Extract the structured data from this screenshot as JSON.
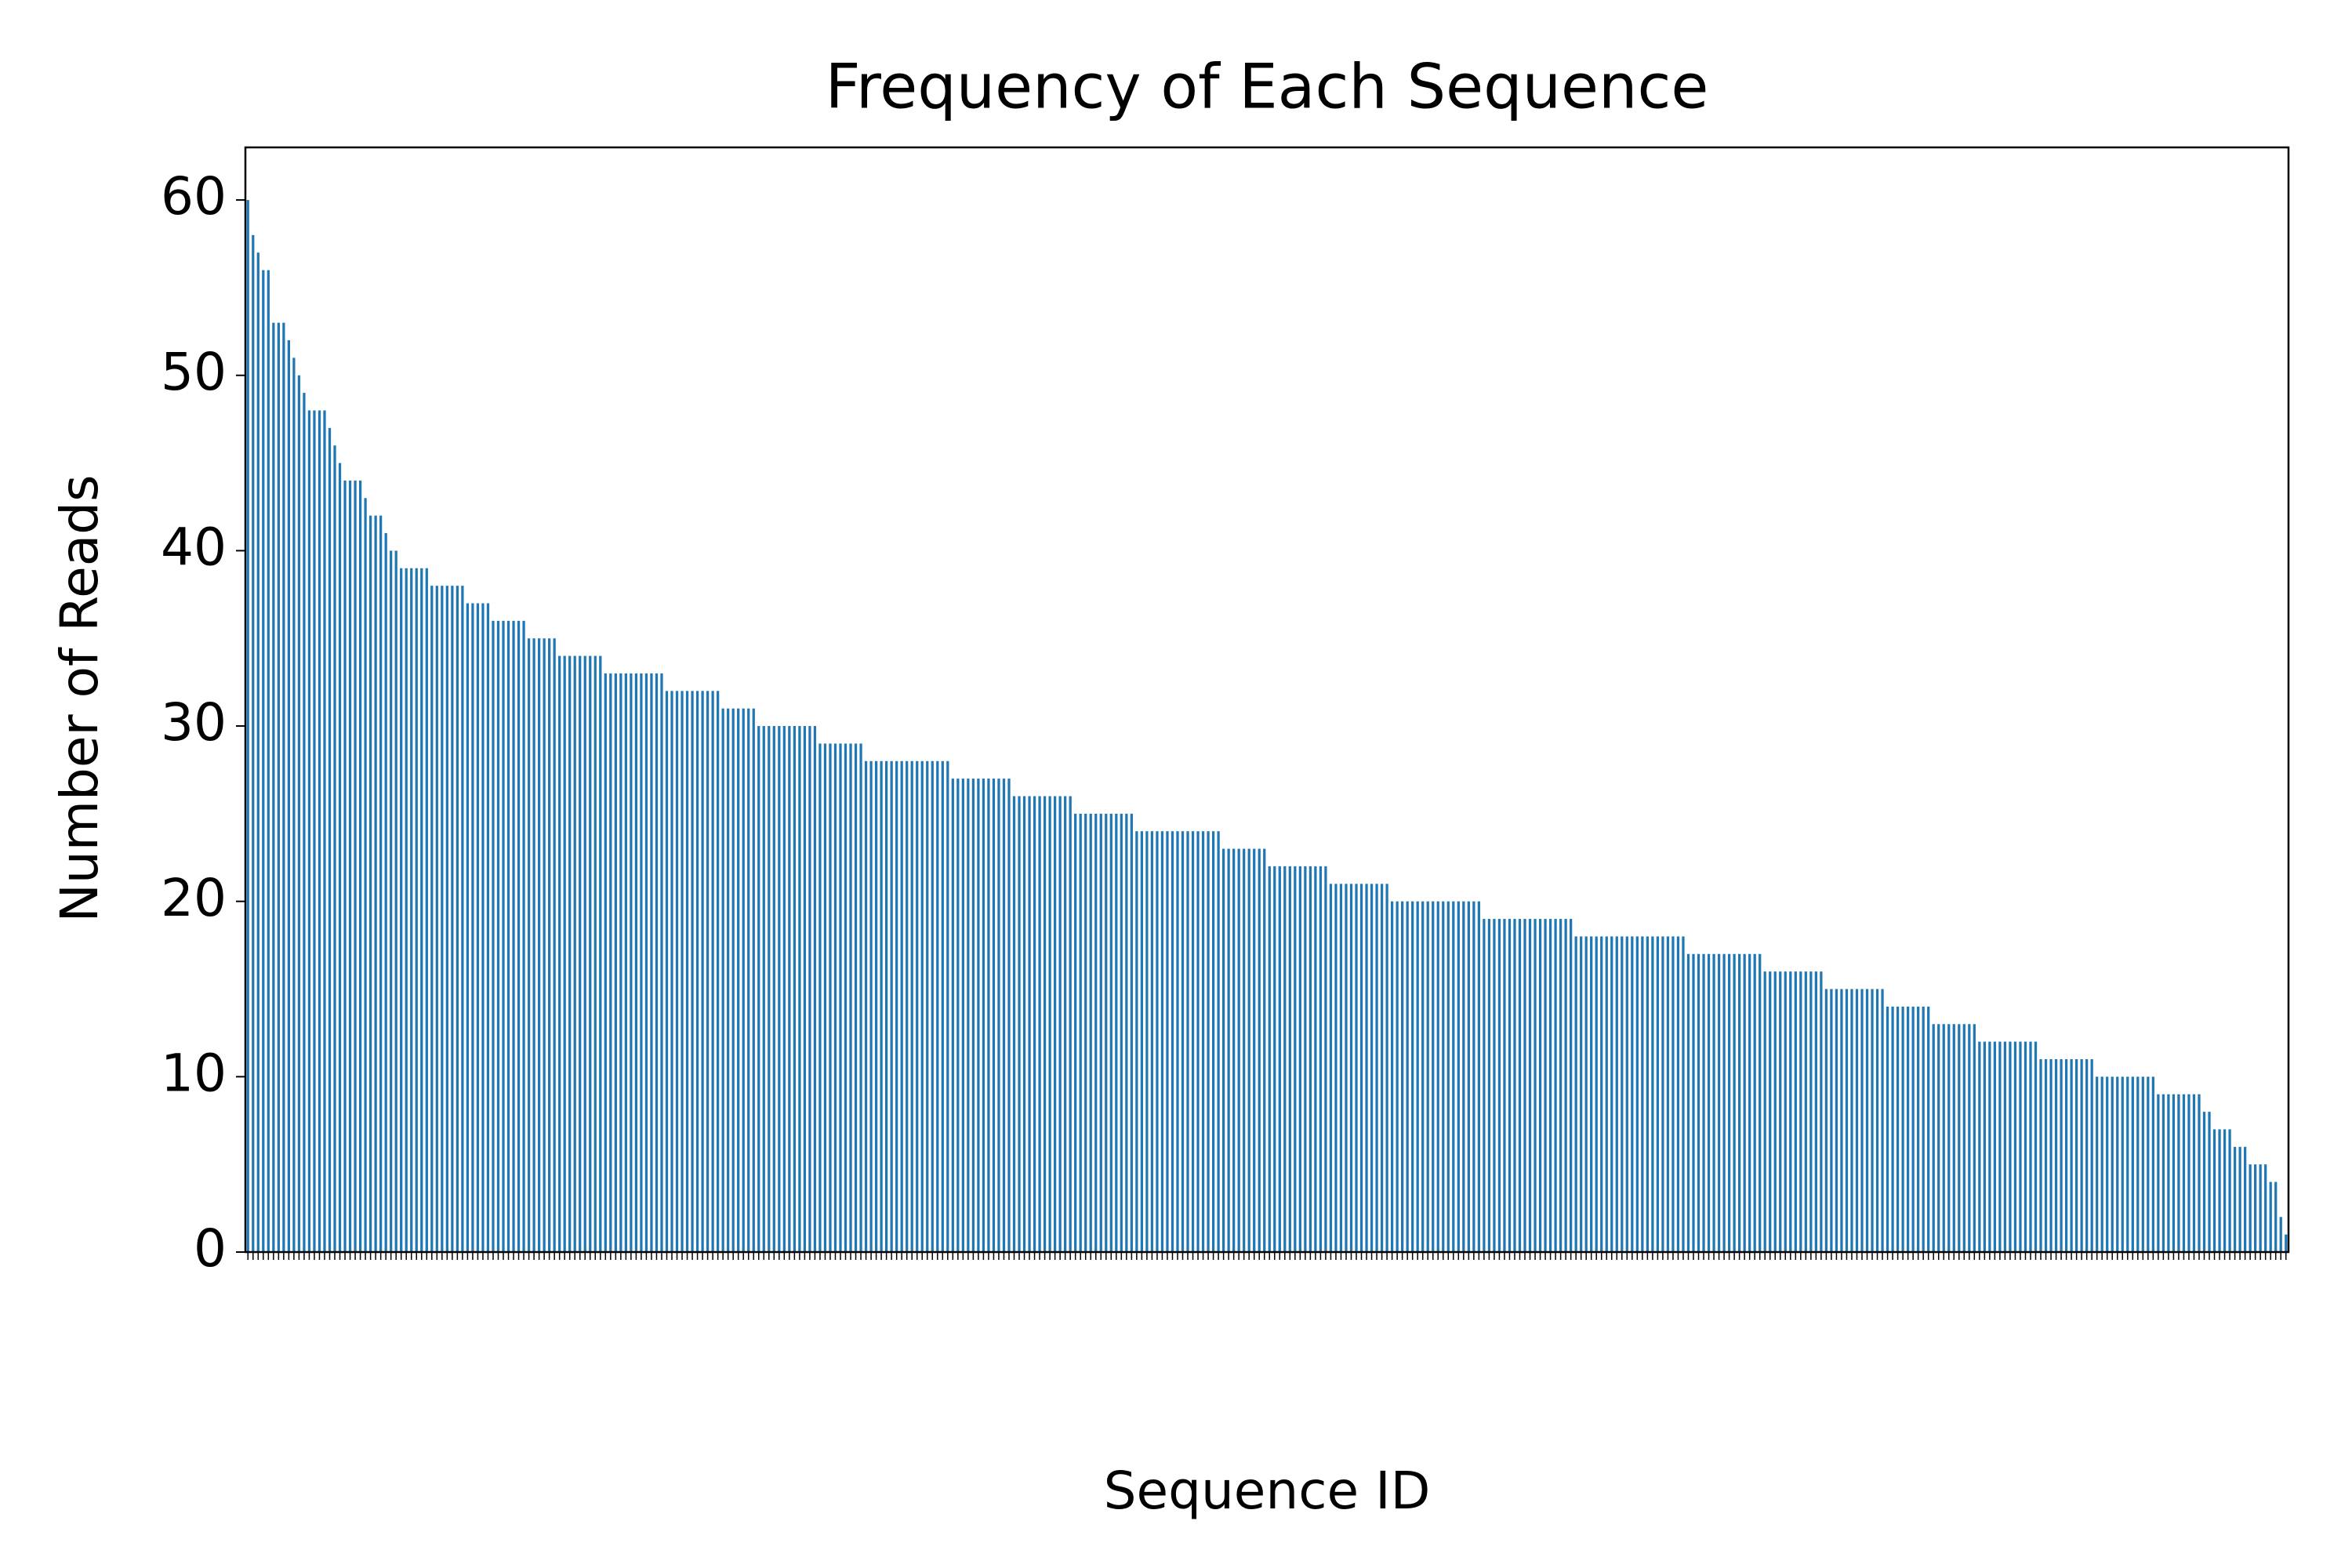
{
  "chart_data": {
    "type": "bar",
    "title": "Frequency of Each Sequence",
    "x_label": "Sequence ID",
    "y_label": "Number of Reads",
    "color": "#1f77b4",
    "ylim": [
      0,
      63
    ],
    "yticks": [
      0,
      10,
      20,
      30,
      40,
      50,
      60
    ],
    "categories": [
      null,
      null,
      null,
      null,
      null,
      null,
      null,
      null,
      null,
      null,
      null,
      null,
      null,
      null,
      null,
      null,
      null,
      null,
      null,
      null,
      null,
      null,
      null,
      null,
      null,
      null,
      null,
      null,
      null,
      null,
      null,
      null,
      null,
      null,
      null,
      null,
      null,
      null,
      null,
      null,
      null,
      null,
      null,
      null,
      null,
      null,
      null,
      null,
      null,
      null,
      null,
      null,
      null,
      null,
      null,
      null,
      null,
      null,
      null,
      null,
      null,
      null,
      null,
      null,
      null,
      null,
      null,
      null,
      null,
      null,
      null,
      null,
      null,
      null,
      null,
      null,
      null,
      null,
      null,
      null,
      null,
      null,
      null,
      null,
      null,
      null,
      null,
      null,
      null,
      null,
      null,
      null,
      null,
      null,
      null,
      null,
      null,
      null,
      null,
      null,
      null,
      null,
      null,
      null,
      null,
      null,
      null,
      null,
      null,
      null,
      null,
      null,
      null,
      null,
      null,
      null,
      null,
      null,
      null,
      null,
      null,
      null,
      null,
      null,
      null,
      null,
      null,
      null,
      null,
      null,
      null,
      null,
      null,
      null,
      null,
      null,
      null,
      null,
      null,
      null,
      null,
      null,
      null,
      null,
      null,
      null,
      null,
      null,
      null,
      null,
      null,
      null,
      null,
      null,
      null,
      null,
      null,
      null,
      null,
      null,
      null,
      null,
      null,
      null,
      null,
      null,
      null,
      null,
      null,
      null,
      null,
      null,
      null,
      null,
      null,
      null,
      null,
      null,
      null,
      null,
      null,
      null,
      null,
      null,
      null,
      null,
      null,
      null,
      null,
      null,
      null,
      null,
      null,
      null,
      null,
      null,
      null,
      null,
      null,
      null,
      null,
      null,
      null,
      null,
      null,
      null,
      null,
      null,
      null,
      null,
      null,
      null,
      null,
      null,
      null,
      null,
      null,
      null,
      null,
      null,
      null,
      null,
      null,
      null,
      null,
      null,
      null,
      null,
      null,
      null,
      null,
      null,
      null,
      null,
      null,
      null,
      null,
      null,
      null,
      null,
      null,
      null,
      null,
      null,
      null,
      null,
      null,
      null,
      null,
      null,
      null,
      null,
      null,
      null,
      null,
      null,
      null,
      null,
      null,
      null,
      null,
      null,
      null,
      null,
      null,
      null,
      null,
      null,
      null,
      null,
      null,
      null,
      null,
      null,
      null,
      null,
      null,
      null,
      null,
      null,
      null,
      null,
      null,
      null,
      null,
      null,
      null,
      null,
      null,
      null,
      null,
      null,
      null,
      null,
      null,
      null,
      null,
      null,
      null,
      null,
      null,
      null,
      null,
      null,
      null,
      null,
      null,
      null,
      null,
      null,
      null,
      null,
      null,
      null,
      null,
      null,
      null,
      null,
      null,
      null,
      null,
      null,
      null,
      null,
      null,
      null,
      null,
      null,
      null,
      null,
      null,
      null,
      null,
      null,
      null,
      null,
      null,
      null,
      null,
      null,
      null,
      null,
      null,
      null,
      null,
      null,
      null,
      null,
      null,
      null,
      null,
      null,
      null,
      null,
      null,
      null,
      null,
      null,
      null,
      null,
      null,
      null,
      null,
      null,
      null,
      null,
      null,
      null,
      null,
      null,
      null,
      null,
      null,
      null,
      null,
      null,
      null,
      null,
      null,
      null,
      null,
      null,
      null,
      null,
      null,
      null,
      null,
      null,
      null,
      null,
      null,
      null,
      null,
      null,
      null,
      null,
      null,
      null,
      null,
      null
    ],
    "values": [
      60,
      58,
      57,
      56,
      56,
      53,
      53,
      53,
      52,
      51,
      50,
      49,
      48,
      48,
      48,
      48,
      47,
      46,
      45,
      44,
      44,
      44,
      44,
      43,
      42,
      42,
      42,
      41,
      40,
      40,
      39,
      39,
      39,
      39,
      39,
      39,
      38,
      38,
      38,
      38,
      38,
      38,
      38,
      37,
      37,
      37,
      37,
      37,
      36,
      36,
      36,
      36,
      36,
      36,
      36,
      35,
      35,
      35,
      35,
      35,
      35,
      34,
      34,
      34,
      34,
      34,
      34,
      34,
      34,
      34,
      33,
      33,
      33,
      33,
      33,
      33,
      33,
      33,
      33,
      33,
      33,
      33,
      32,
      32,
      32,
      32,
      32,
      32,
      32,
      32,
      32,
      32,
      32,
      31,
      31,
      31,
      31,
      31,
      31,
      31,
      30,
      30,
      30,
      30,
      30,
      30,
      30,
      30,
      30,
      30,
      30,
      30,
      29,
      29,
      29,
      29,
      29,
      29,
      29,
      29,
      29,
      28,
      28,
      28,
      28,
      28,
      28,
      28,
      28,
      28,
      28,
      28,
      28,
      28,
      28,
      28,
      28,
      28,
      27,
      27,
      27,
      27,
      27,
      27,
      27,
      27,
      27,
      27,
      27,
      27,
      26,
      26,
      26,
      26,
      26,
      26,
      26,
      26,
      26,
      26,
      26,
      26,
      25,
      25,
      25,
      25,
      25,
      25,
      25,
      25,
      25,
      25,
      25,
      25,
      24,
      24,
      24,
      24,
      24,
      24,
      24,
      24,
      24,
      24,
      24,
      24,
      24,
      24,
      24,
      24,
      24,
      23,
      23,
      23,
      23,
      23,
      23,
      23,
      23,
      23,
      22,
      22,
      22,
      22,
      22,
      22,
      22,
      22,
      22,
      22,
      22,
      22,
      21,
      21,
      21,
      21,
      21,
      21,
      21,
      21,
      21,
      21,
      21,
      21,
      20,
      20,
      20,
      20,
      20,
      20,
      20,
      20,
      20,
      20,
      20,
      20,
      20,
      20,
      20,
      20,
      20,
      20,
      19,
      19,
      19,
      19,
      19,
      19,
      19,
      19,
      19,
      19,
      19,
      19,
      19,
      19,
      19,
      19,
      19,
      19,
      18,
      18,
      18,
      18,
      18,
      18,
      18,
      18,
      18,
      18,
      18,
      18,
      18,
      18,
      18,
      18,
      18,
      18,
      18,
      18,
      18,
      18,
      17,
      17,
      17,
      17,
      17,
      17,
      17,
      17,
      17,
      17,
      17,
      17,
      17,
      17,
      17,
      16,
      16,
      16,
      16,
      16,
      16,
      16,
      16,
      16,
      16,
      16,
      16,
      15,
      15,
      15,
      15,
      15,
      15,
      15,
      15,
      15,
      15,
      15,
      15,
      14,
      14,
      14,
      14,
      14,
      14,
      14,
      14,
      14,
      13,
      13,
      13,
      13,
      13,
      13,
      13,
      13,
      13,
      12,
      12,
      12,
      12,
      12,
      12,
      12,
      12,
      12,
      12,
      12,
      12,
      11,
      11,
      11,
      11,
      11,
      11,
      11,
      11,
      11,
      11,
      11,
      10,
      10,
      10,
      10,
      10,
      10,
      10,
      10,
      10,
      10,
      10,
      10,
      9,
      9,
      9,
      9,
      9,
      9,
      9,
      9,
      9,
      8,
      8,
      7,
      7,
      7,
      7,
      6,
      6,
      6,
      5,
      5,
      5,
      5,
      4,
      4,
      2,
      1
    ]
  }
}
